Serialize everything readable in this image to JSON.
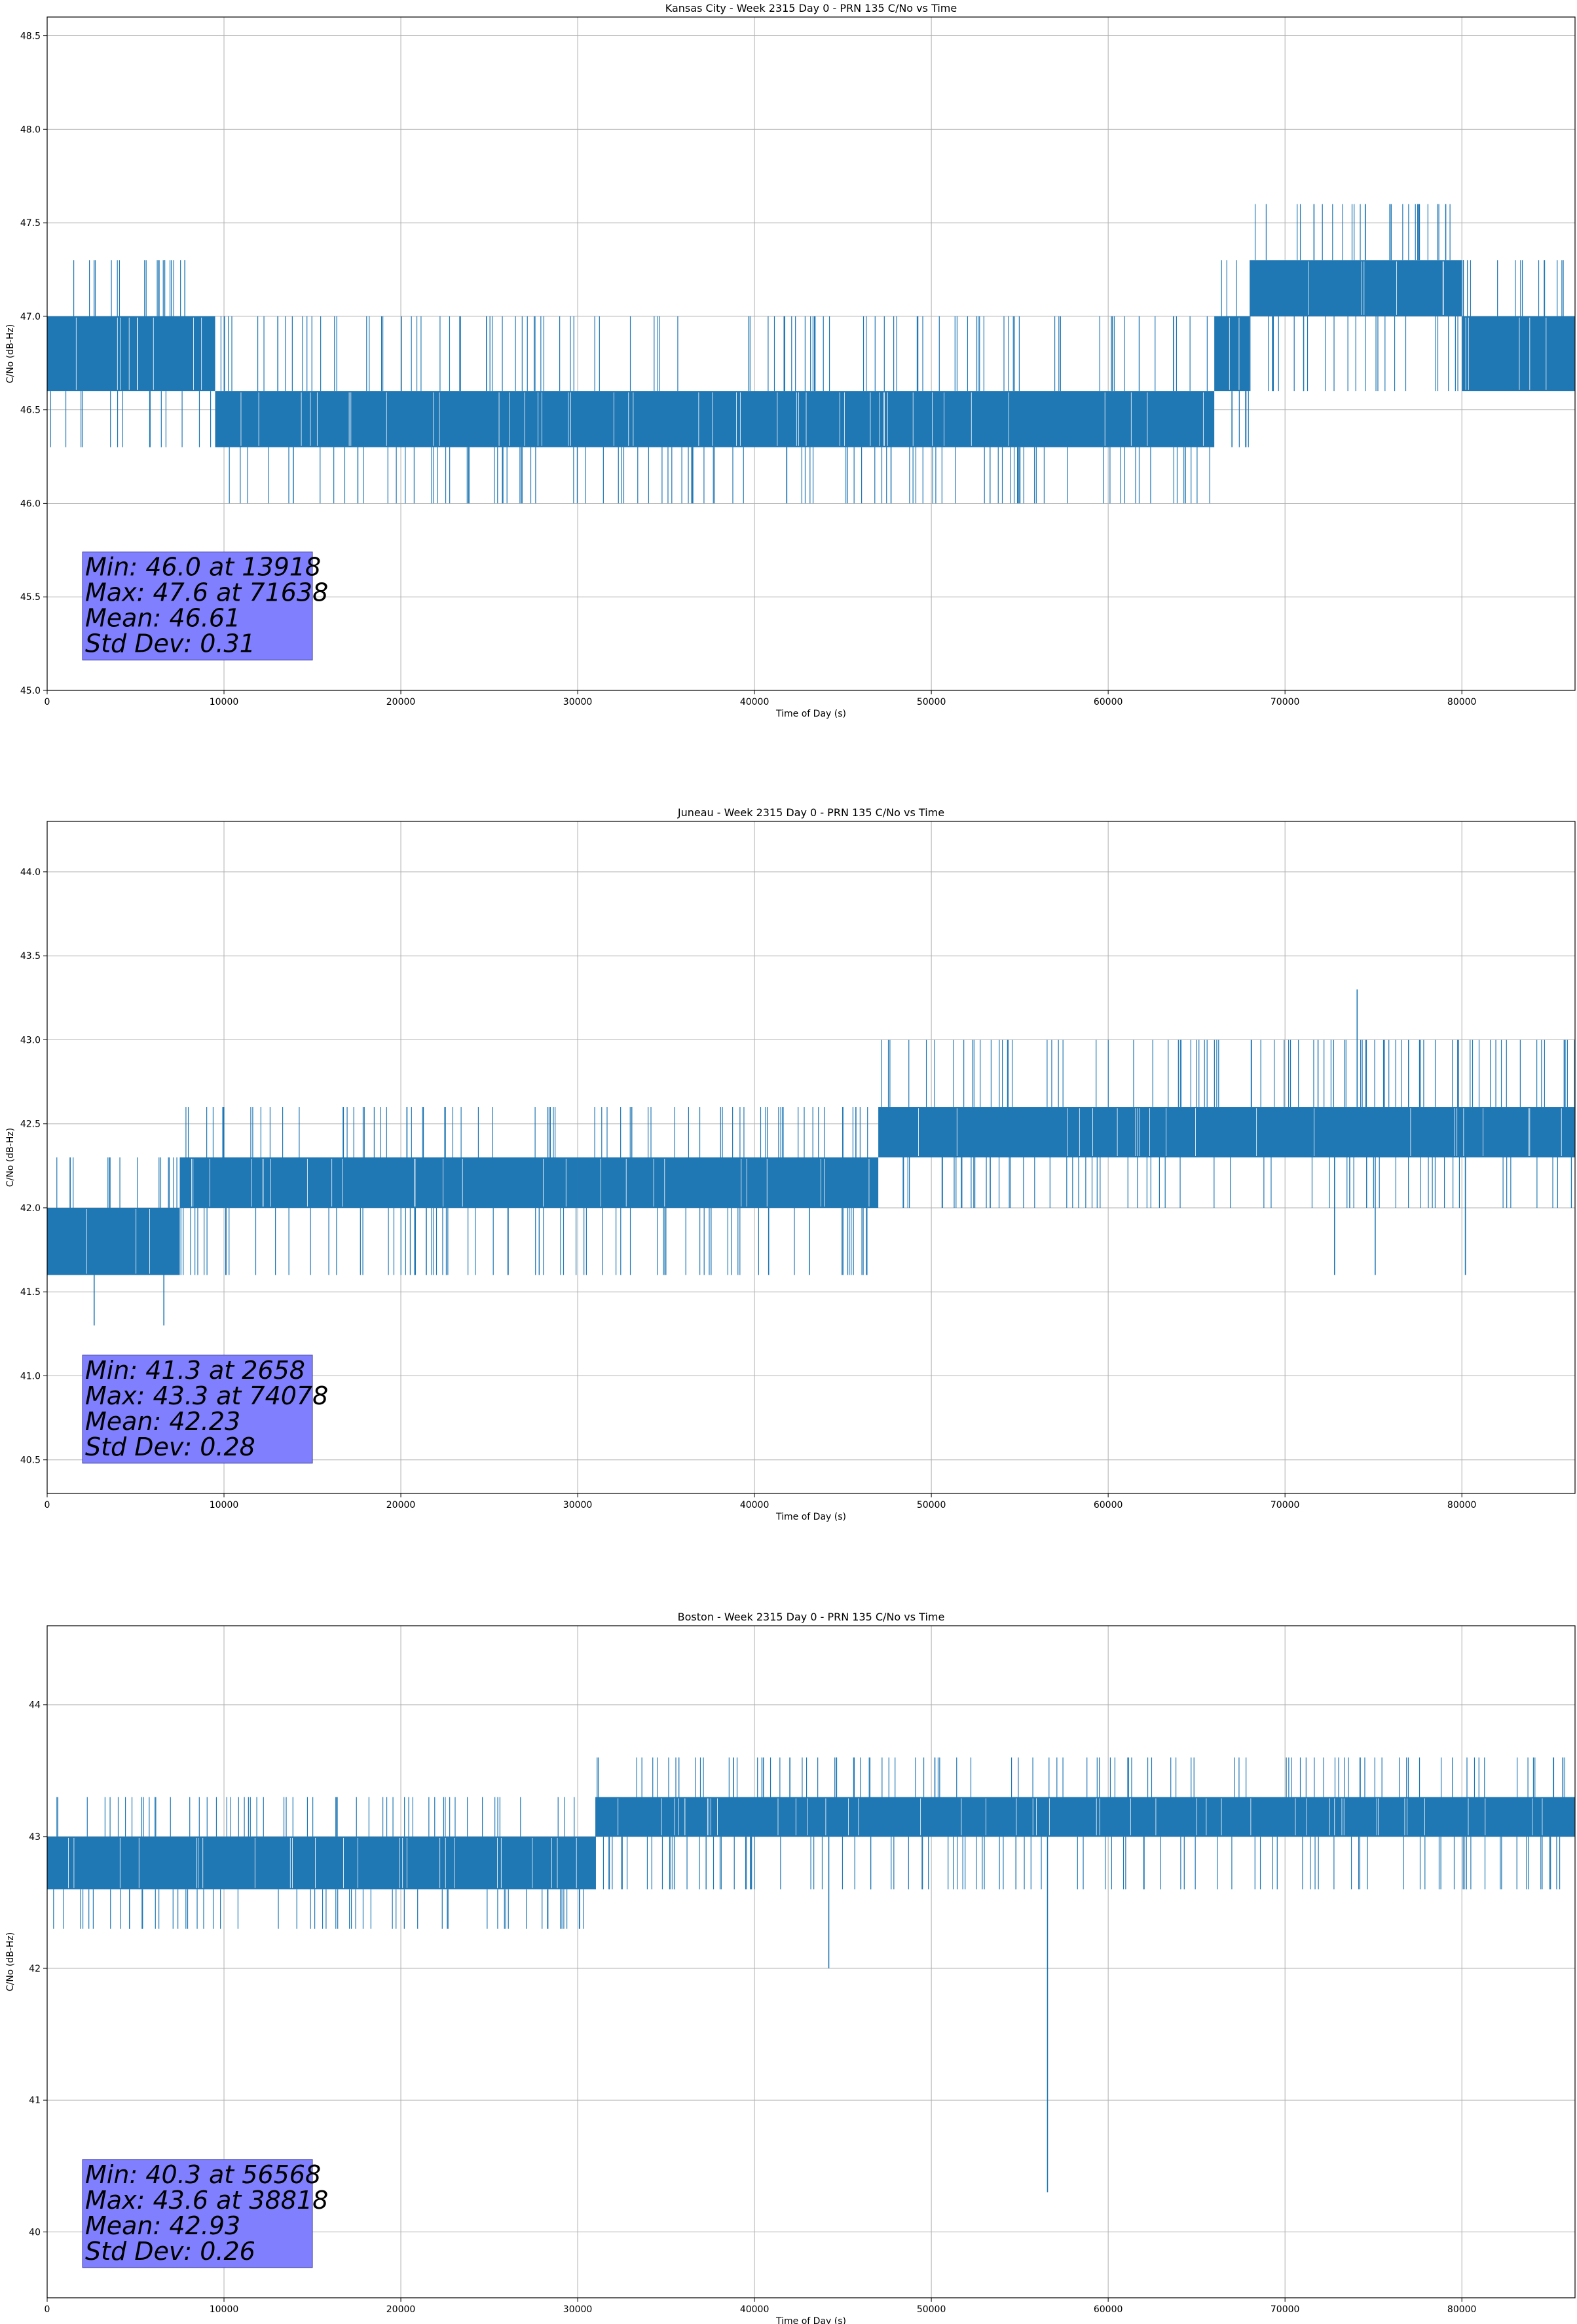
{
  "chart_data": [
    {
      "type": "line",
      "title": "Kansas City - Week 2315 Day 0 - PRN 135 C/No vs Time",
      "xlabel": "Time of Day (s)",
      "ylabel": "C/No (dB-Hz)",
      "xlim": [
        0,
        86400
      ],
      "ylim": [
        45.0,
        48.6
      ],
      "xticks": [
        0,
        10000,
        20000,
        30000,
        40000,
        50000,
        60000,
        70000,
        80000
      ],
      "yticks": [
        45.0,
        45.5,
        46.0,
        46.5,
        47.0,
        47.5,
        48.0,
        48.5
      ],
      "ytick_decimals": 1,
      "grid": true,
      "series_color": "#1f77b4",
      "stats_lines": [
        "Min: 46.0 at 13918",
        "Max: 47.6 at 71638",
        "Mean: 46.61",
        "Std Dev: 0.31"
      ],
      "segments": [
        {
          "x": [
            0,
            9500
          ],
          "band": [
            46.6,
            47.0
          ],
          "up": 47.3,
          "down": 46.3
        },
        {
          "x": [
            9500,
            66000
          ],
          "band": [
            46.3,
            46.6
          ],
          "up": 47.0,
          "down": 46.0
        },
        {
          "x": [
            66000,
            68000
          ],
          "band": [
            46.6,
            47.0
          ],
          "up": 47.3,
          "down": 46.3
        },
        {
          "x": [
            68000,
            80000
          ],
          "band": [
            47.0,
            47.3
          ],
          "up": 47.6,
          "down": 46.6
        },
        {
          "x": [
            80000,
            86400
          ],
          "band": [
            46.6,
            47.0
          ],
          "up": 47.3,
          "down": 46.6
        }
      ],
      "spikes": [
        [
          71638,
          47.6
        ],
        [
          76000,
          47.6
        ],
        [
          77600,
          47.6
        ],
        [
          13918,
          46.0
        ],
        [
          5800,
          46.3
        ],
        [
          67000,
          46.3
        ]
      ]
    },
    {
      "type": "line",
      "title": "Juneau - Week 2315 Day 0 - PRN 135 C/No vs Time",
      "xlabel": "Time of Day (s)",
      "ylabel": "C/No (dB-Hz)",
      "xlim": [
        0,
        86400
      ],
      "ylim": [
        40.3,
        44.3
      ],
      "xticks": [
        0,
        10000,
        20000,
        30000,
        40000,
        50000,
        60000,
        70000,
        80000
      ],
      "yticks": [
        40.5,
        41.0,
        41.5,
        42.0,
        42.5,
        43.0,
        43.5,
        44.0
      ],
      "ytick_decimals": 1,
      "grid": true,
      "series_color": "#1f77b4",
      "stats_lines": [
        "Min: 41.3 at 2658",
        "Max: 43.3 at 74078",
        "Mean: 42.23",
        "Std Dev: 0.28"
      ],
      "segments": [
        {
          "x": [
            0,
            7500
          ],
          "band": [
            41.6,
            42.0
          ],
          "up": 42.3,
          "down": 41.6
        },
        {
          "x": [
            7500,
            30000
          ],
          "band": [
            42.0,
            42.3
          ],
          "up": 42.6,
          "down": 41.6
        },
        {
          "x": [
            30000,
            47000
          ],
          "band": [
            42.0,
            42.3
          ],
          "up": 42.6,
          "down": 41.6
        },
        {
          "x": [
            47000,
            86400
          ],
          "band": [
            42.3,
            42.6
          ],
          "up": 43.0,
          "down": 42.0
        }
      ],
      "spikes": [
        [
          2658,
          41.3
        ],
        [
          6600,
          41.3
        ],
        [
          74078,
          43.3
        ],
        [
          40800,
          41.6
        ],
        [
          43100,
          41.6
        ],
        [
          45000,
          41.6
        ],
        [
          72800,
          41.6
        ],
        [
          75100,
          41.6
        ],
        [
          80200,
          41.6
        ]
      ]
    },
    {
      "type": "line",
      "title": "Boston - Week 2315 Day 0 - PRN 135 C/No vs Time",
      "xlabel": "Time of Day (s)",
      "ylabel": "C/No (dB-Hz)",
      "xlim": [
        0,
        86400
      ],
      "ylim": [
        39.5,
        44.6
      ],
      "xticks": [
        0,
        10000,
        20000,
        30000,
        40000,
        50000,
        60000,
        70000,
        80000
      ],
      "yticks": [
        40,
        41,
        42,
        43,
        44
      ],
      "ytick_decimals": 0,
      "grid": true,
      "series_color": "#1f77b4",
      "stats_lines": [
        "Min: 40.3 at 56568",
        "Max: 43.6 at 38818",
        "Mean: 42.93",
        "Std Dev: 0.26"
      ],
      "segments": [
        {
          "x": [
            0,
            31000
          ],
          "band": [
            42.6,
            43.0
          ],
          "up": 43.3,
          "down": 42.3
        },
        {
          "x": [
            31000,
            86400
          ],
          "band": [
            43.0,
            43.3
          ],
          "up": 43.6,
          "down": 42.6
        }
      ],
      "spikes": [
        [
          56568,
          40.3
        ],
        [
          44200,
          42.0
        ],
        [
          38818,
          43.6
        ],
        [
          40500,
          43.6
        ],
        [
          42000,
          43.6
        ],
        [
          50200,
          43.6
        ]
      ]
    }
  ]
}
